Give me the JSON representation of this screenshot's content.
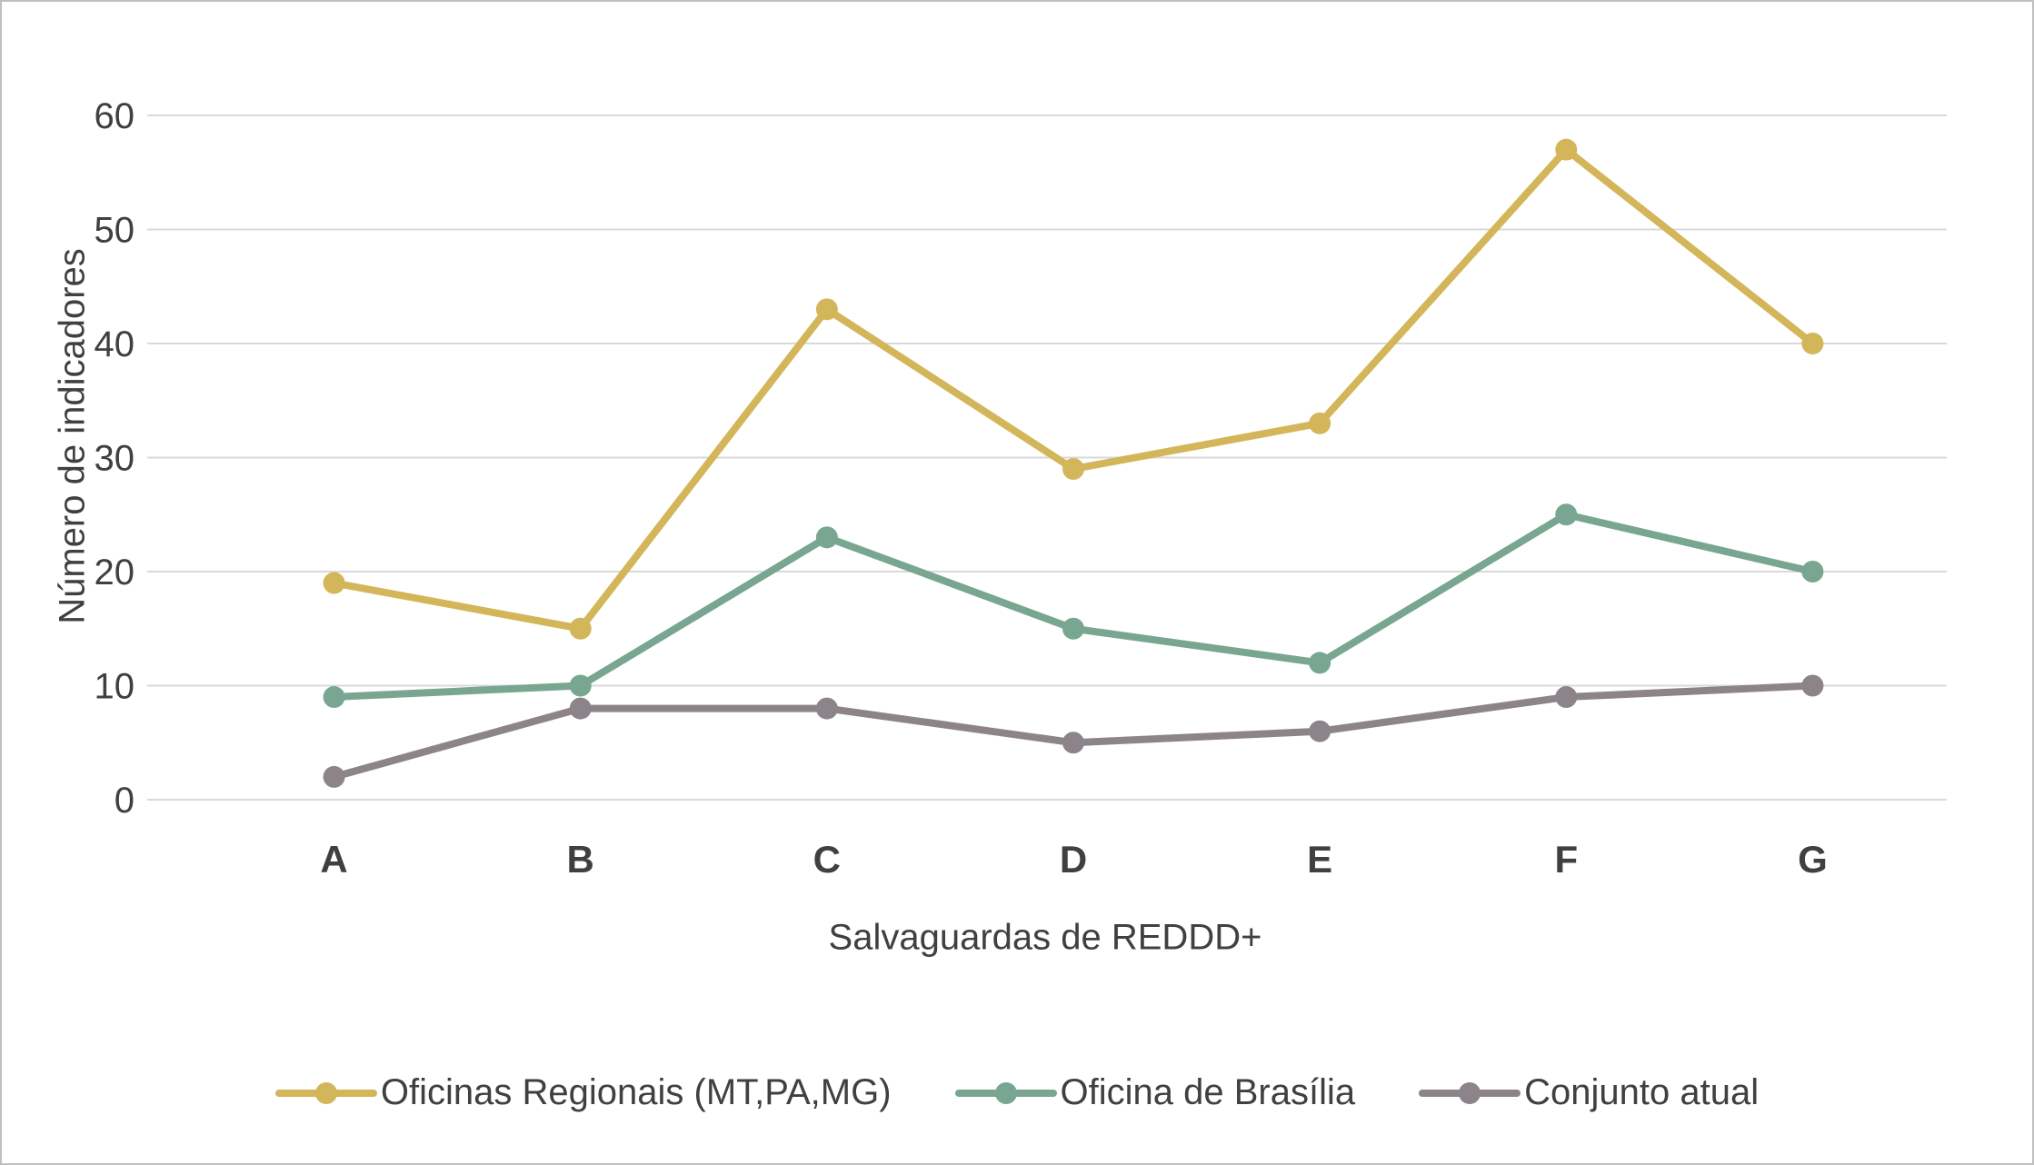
{
  "chart_data": {
    "type": "line",
    "categories": [
      "A",
      "B",
      "C",
      "D",
      "E",
      "F",
      "G"
    ],
    "series": [
      {
        "name": "Oficinas Regionais (MT,PA,MG)",
        "color": "#d3b65a",
        "values": [
          19,
          15,
          43,
          29,
          33,
          57,
          40
        ]
      },
      {
        "name": "Oficina de Brasília",
        "color": "#78a690",
        "values": [
          9,
          10,
          23,
          15,
          12,
          25,
          20
        ]
      },
      {
        "name": "Conjunto atual",
        "color": "#8d8489",
        "values": [
          2,
          8,
          8,
          5,
          6,
          9,
          10
        ]
      }
    ],
    "title": "",
    "xlabel": "Salvaguardas de REDDD+",
    "ylabel": "Número de indicadores",
    "ylim": [
      0,
      60
    ],
    "ytick_step": 10,
    "grid": true,
    "legend_position": "bottom"
  },
  "colors": {
    "background": "#ffffff",
    "border": "#bfbfbf",
    "grid": "#d9d9d9",
    "axis_text": "#404040"
  }
}
